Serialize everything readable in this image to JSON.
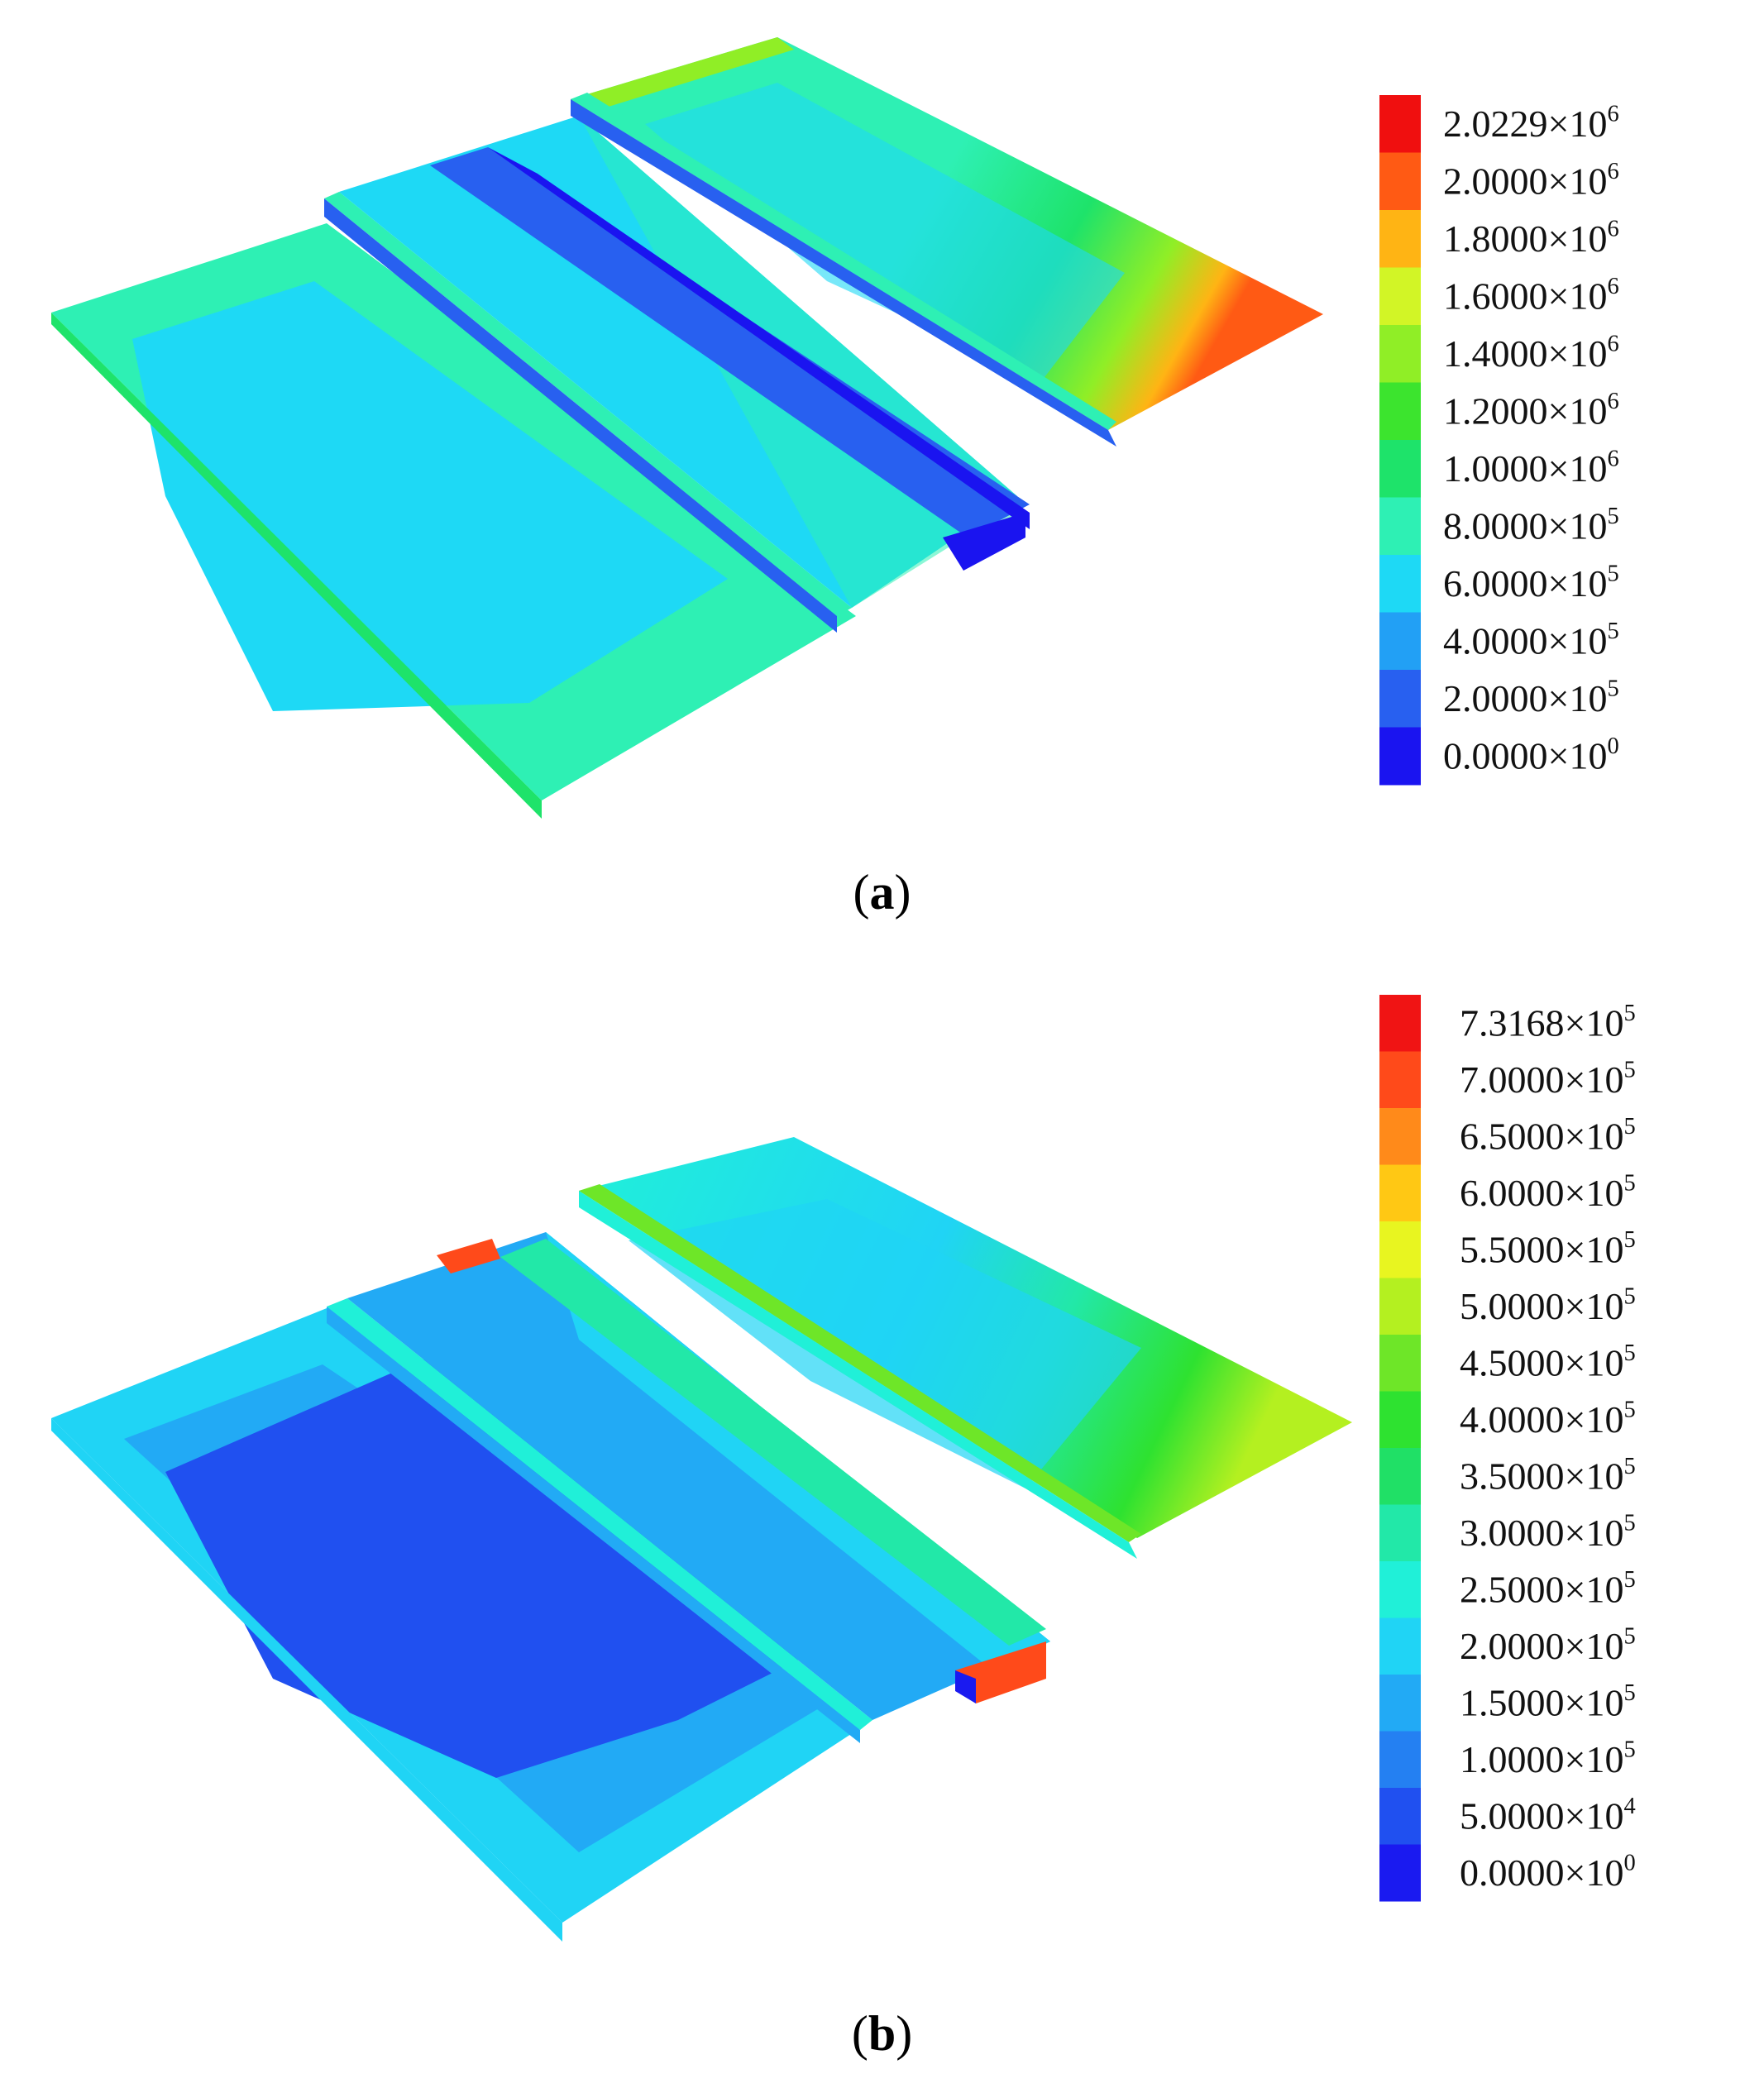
{
  "panels": [
    {
      "caption_letter": "a",
      "legend": {
        "labels": [
          {
            "mantissa": "2.0229",
            "exp": "6"
          },
          {
            "mantissa": "2.0000",
            "exp": "6"
          },
          {
            "mantissa": "1.8000",
            "exp": "6"
          },
          {
            "mantissa": "1.6000",
            "exp": "6"
          },
          {
            "mantissa": "1.4000",
            "exp": "6"
          },
          {
            "mantissa": "1.2000",
            "exp": "6"
          },
          {
            "mantissa": "1.0000",
            "exp": "6"
          },
          {
            "mantissa": "8.0000",
            "exp": "5"
          },
          {
            "mantissa": "6.0000",
            "exp": "5"
          },
          {
            "mantissa": "4.0000",
            "exp": "5"
          },
          {
            "mantissa": "2.0000",
            "exp": "5"
          },
          {
            "mantissa": "0.0000",
            "exp": "0"
          }
        ],
        "colors": [
          "#f00f0f",
          "#ff5a14",
          "#ffb414",
          "#d2f526",
          "#90ee26",
          "#3ce42e",
          "#1ee36a",
          "#2ef0b4",
          "#1ed9f5",
          "#22a0f5",
          "#2860f0",
          "#1a14f0"
        ]
      }
    },
    {
      "caption_letter": "b",
      "legend": {
        "labels": [
          {
            "mantissa": "7.3168",
            "exp": "5"
          },
          {
            "mantissa": "7.0000",
            "exp": "5"
          },
          {
            "mantissa": "6.5000",
            "exp": "5"
          },
          {
            "mantissa": "6.0000",
            "exp": "5"
          },
          {
            "mantissa": "5.5000",
            "exp": "5"
          },
          {
            "mantissa": "5.0000",
            "exp": "5"
          },
          {
            "mantissa": "4.5000",
            "exp": "5"
          },
          {
            "mantissa": "4.0000",
            "exp": "5"
          },
          {
            "mantissa": "3.5000",
            "exp": "5"
          },
          {
            "mantissa": "3.0000",
            "exp": "5"
          },
          {
            "mantissa": "2.5000",
            "exp": "5"
          },
          {
            "mantissa": "2.0000",
            "exp": "5"
          },
          {
            "mantissa": "1.5000",
            "exp": "5"
          },
          {
            "mantissa": "1.0000",
            "exp": "5"
          },
          {
            "mantissa": "5.0000",
            "exp": "4"
          },
          {
            "mantissa": "0.0000",
            "exp": "0"
          }
        ],
        "colors": [
          "#f01414",
          "#ff4a1a",
          "#ff8a1a",
          "#ffc814",
          "#e8f520",
          "#b4f020",
          "#6ee628",
          "#2ee230",
          "#20e066",
          "#22e8a8",
          "#20f0d8",
          "#20d4f5",
          "#22aaf5",
          "#2480f2",
          "#2050f0",
          "#1a1af0"
        ]
      }
    }
  ]
}
